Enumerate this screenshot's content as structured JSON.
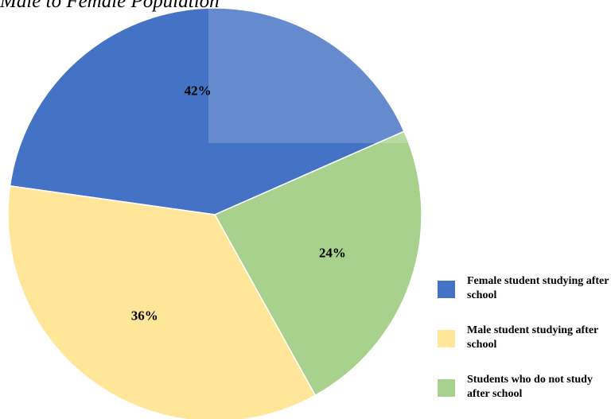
{
  "chart_data": {
    "type": "pie",
    "title": "Male to Female Population",
    "categories": [
      "Female student studying after school",
      "Male student studying after school",
      "Students who do not study after school"
    ],
    "values": [
      42,
      36,
      24
    ],
    "value_labels": [
      "42%",
      "36%",
      "24%"
    ],
    "colors": [
      "#4472c4",
      "#ffe699",
      "#a9d18e"
    ]
  }
}
